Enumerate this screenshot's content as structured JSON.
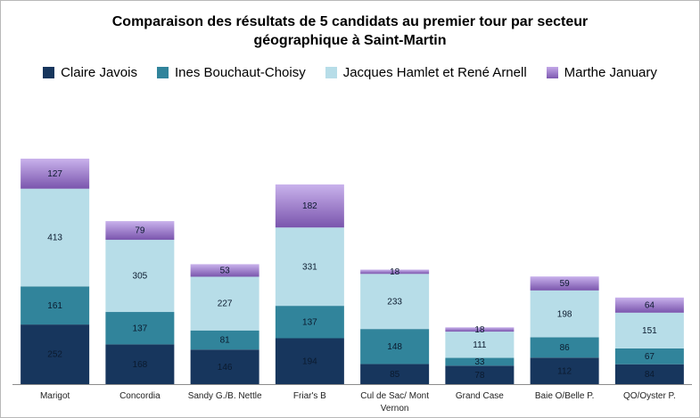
{
  "chart_data": {
    "type": "bar",
    "stacked": true,
    "title": "Comparaison des résultats de 5 candidats au premier tour par secteur géographique à Saint-Martin",
    "title_lines": [
      "Comparaison des résultats de 5 candidats au premier tour par secteur",
      "géographique à Saint-Martin"
    ],
    "xlabel": "",
    "ylabel": "",
    "legend_position": "top",
    "grid": false,
    "ylim": [
      0,
      1000
    ],
    "categories": [
      "Marigot",
      "Concordia",
      "Sandy G./B. Nettle",
      "Friar's B",
      "Cul de Sac/ Mont Vernon",
      "Grand Case",
      "Baie O/Belle P.",
      "QO/Oyster P."
    ],
    "category_lines": [
      [
        "Marigot"
      ],
      [
        "Concordia"
      ],
      [
        "Sandy G./B. Nettle"
      ],
      [
        "Friar's B"
      ],
      [
        "Cul de Sac/ Mont",
        "Vernon"
      ],
      [
        "Grand Case"
      ],
      [
        "Baie O/Belle P."
      ],
      [
        "QO/Oyster P."
      ]
    ],
    "series": [
      {
        "name": "Claire Javois",
        "color": "#17365d",
        "values": [
          252,
          168,
          146,
          194,
          85,
          78,
          112,
          84
        ]
      },
      {
        "name": "Ines Bouchaut-Choisy",
        "color": "#31849b",
        "values": [
          161,
          137,
          81,
          137,
          148,
          33,
          86,
          67
        ]
      },
      {
        "name": "Jacques Hamlet et René Arnell",
        "color": "#b7dde8",
        "values": [
          413,
          305,
          227,
          331,
          233,
          111,
          198,
          151
        ]
      },
      {
        "name": "Marthe January",
        "color": "#8e6bbf",
        "values": [
          127,
          79,
          53,
          182,
          18,
          18,
          59,
          64
        ]
      }
    ]
  }
}
